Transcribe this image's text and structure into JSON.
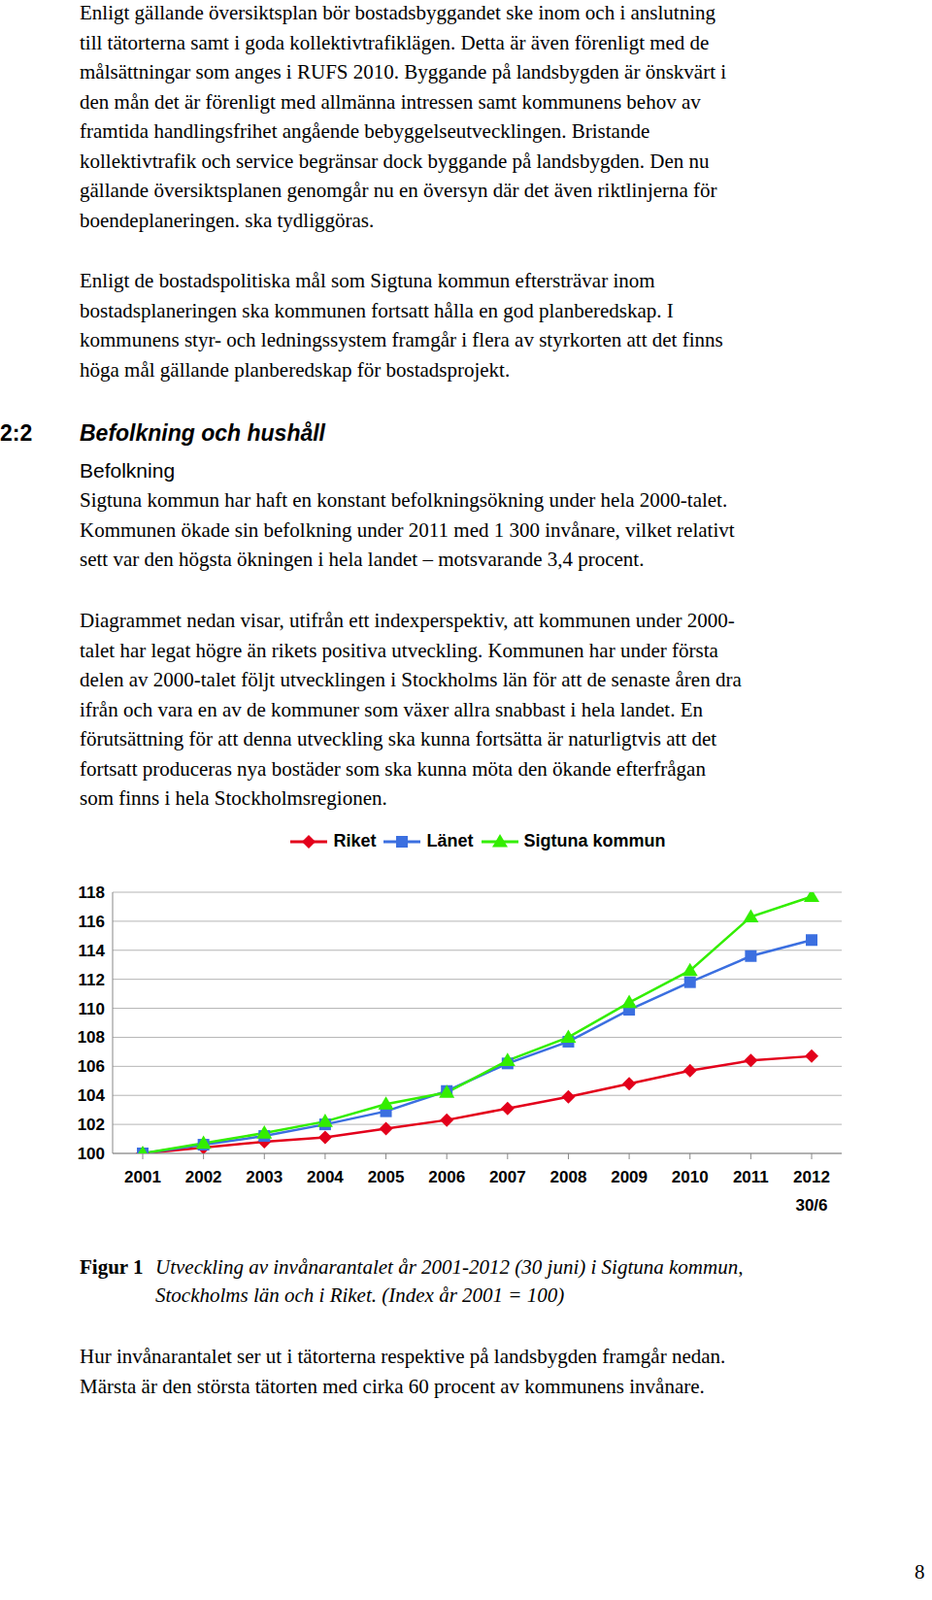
{
  "paragraphs_top": [
    [
      "Enligt gällande översiktsplan bör bostadsbyggandet ske inom och i anslutning",
      "till tätorterna samt i goda kollektivtrafiklägen. Detta är även förenligt med de",
      "målsättningar som anges i RUFS 2010. Byggande på landsbygden är önskvärt i",
      "den mån det är förenligt med allmänna intressen samt kommunens behov av",
      "framtida handlingsfrihet angående bebyggelseutvecklingen. Bristande",
      "kollektivtrafik och service begränsar dock byggande på landsbygden. Den nu",
      "gällande översiktsplanen genomgår nu en översyn där det även riktlinjerna för",
      "boendeplaneringen. ska tydliggöras."
    ],
    [
      "Enligt de bostadspolitiska mål som Sigtuna kommun eftersträvar inom",
      "bostadsplaneringen ska kommunen fortsatt hålla en god planberedskap. I",
      "kommunens styr- och ledningssystem framgår i flera av styrkorten att det finns",
      "höga mål gällande planberedskap för bostadsprojekt."
    ]
  ],
  "section": {
    "number": "2:2",
    "title": "Befolkning och hushåll",
    "subheading": "Befolkning"
  },
  "paragraphs_section": [
    [
      "Sigtuna kommun har haft en konstant befolkningsökning under hela 2000-talet.",
      "Kommunen ökade sin befolkning under 2011 med 1 300 invånare, vilket relativt",
      "sett var den högsta ökningen i hela landet – motsvarande 3,4 procent."
    ],
    [
      "Diagrammet nedan visar, utifrån ett indexperspektiv, att kommunen under 2000-",
      "talet har legat högre än rikets positiva utveckling. Kommunen har under första",
      "delen av 2000-talet följt utvecklingen i Stockholms län för att de senaste åren dra",
      "ifrån och vara en av de kommuner som växer allra snabbast i hela landet. En",
      "förutsättning för att denna utveckling ska kunna fortsätta är naturligtvis att det",
      "fortsatt produceras nya bostäder som ska kunna möta den ökande efterfrågan",
      "som finns i hela Stockholmsregionen."
    ]
  ],
  "chart_data": {
    "type": "line",
    "categories": [
      "2001",
      "2002",
      "2003",
      "2004",
      "2005",
      "2006",
      "2007",
      "2008",
      "2009",
      "2010",
      "2011",
      "2012 30/6"
    ],
    "series": [
      {
        "name": "Riket",
        "color": "#e3001b",
        "marker": "diamond",
        "values": [
          100,
          100.4,
          100.8,
          101.1,
          101.7,
          102.3,
          103.1,
          103.9,
          104.8,
          105.7,
          106.4,
          106.7
        ]
      },
      {
        "name": "Länet",
        "color": "#3b6fe0",
        "marker": "square",
        "values": [
          100,
          100.6,
          101.2,
          102.0,
          102.9,
          104.3,
          106.2,
          107.7,
          109.9,
          111.8,
          113.6,
          114.7
        ]
      },
      {
        "name": "Sigtuna kommun",
        "color": "#33ee00",
        "marker": "triangle",
        "values": [
          100,
          100.7,
          101.4,
          102.2,
          103.4,
          104.2,
          106.4,
          108.0,
          110.4,
          112.6,
          116.3,
          117.7
        ]
      }
    ],
    "ylim": [
      100,
      118
    ],
    "yticks": [
      100,
      102,
      104,
      106,
      108,
      110,
      112,
      114,
      116,
      118
    ],
    "grid": true,
    "legend": "top"
  },
  "caption": {
    "label": "Figur 1",
    "lines": [
      "Utveckling av invånarantalet år 2001-2012 (30 juni) i Sigtuna kommun,",
      "Stockholms län och i Riket. (Index år 2001 = 100)"
    ]
  },
  "paragraphs_bottom": [
    [
      "Hur invånarantalet ser ut i tätorterna respektive på landsbygden framgår nedan.",
      "Märsta är den största tätorten med cirka 60 procent av kommunens invånare."
    ]
  ],
  "page_number": "8"
}
